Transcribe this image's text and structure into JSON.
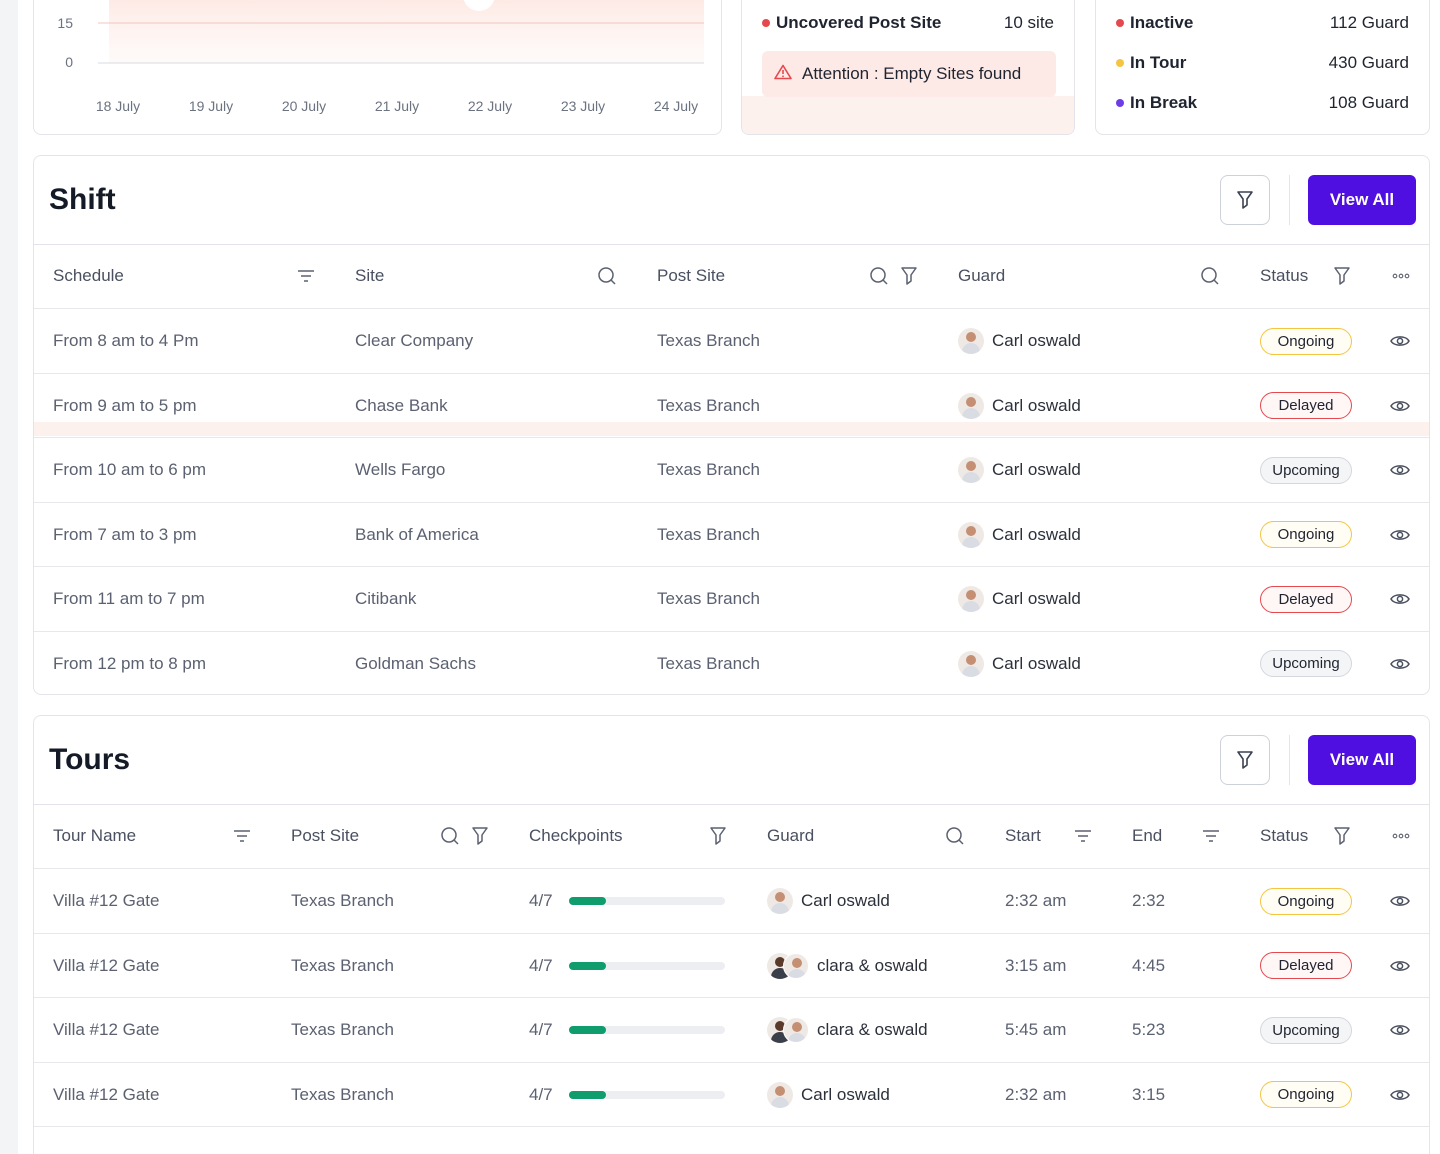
{
  "chart": {
    "y_ticks": [
      "15",
      "0"
    ],
    "x_ticks": [
      "18 July",
      "19 July",
      "20 July",
      "21 July",
      "22 July",
      "23 July",
      "24 July"
    ]
  },
  "uncovered": {
    "label": "Uncovered Post Site",
    "value": "10 site",
    "dot_color": "#e5484d",
    "attention_text": "Attention : Empty Sites found",
    "attention_icon": "warning-triangle-icon"
  },
  "guards": [
    {
      "label": "Inactive",
      "value": "112 Guard",
      "dot_color": "#e5484d"
    },
    {
      "label": "In Tour",
      "value": "430 Guard",
      "dot_color": "#f4c542"
    },
    {
      "label": "In Break",
      "value": "108 Guard",
      "dot_color": "#6d3ce8"
    }
  ],
  "shift": {
    "title": "Shift",
    "view_all": "View All",
    "headers": {
      "schedule": "Schedule",
      "site": "Site",
      "post_site": "Post Site",
      "guard": "Guard",
      "status": "Status"
    },
    "rows": [
      {
        "schedule": "From 8 am to 4 Pm",
        "site": "Clear Company",
        "post_site": "Texas Branch",
        "guard": "Carl oswald",
        "status": "Ongoing"
      },
      {
        "schedule": "From 9 am to 5 pm",
        "site": "Chase Bank",
        "post_site": "Texas Branch",
        "guard": "Carl oswald",
        "status": "Delayed"
      },
      {
        "schedule": "From 10 am to 6 pm",
        "site": "Wells Fargo",
        "post_site": "Texas Branch",
        "guard": "Carl oswald",
        "status": "Upcoming"
      },
      {
        "schedule": "From 7 am to 3 pm",
        "site": "Bank of America",
        "post_site": "Texas Branch",
        "guard": "Carl oswald",
        "status": "Ongoing"
      },
      {
        "schedule": "From 11 am to 7 pm",
        "site": "Citibank",
        "post_site": "Texas Branch",
        "guard": "Carl oswald",
        "status": "Delayed"
      },
      {
        "schedule": "From 12 pm to 8 pm",
        "site": "Goldman Sachs",
        "post_site": "Texas Branch",
        "guard": "Carl oswald",
        "status": "Upcoming"
      }
    ]
  },
  "tours": {
    "title": "Tours",
    "view_all": "View All",
    "headers": {
      "tour_name": "Tour Name",
      "post_site": "Post Site",
      "checkpoints": "Checkpoints",
      "guard": "Guard",
      "start": "Start",
      "end": "End",
      "status": "Status"
    },
    "rows": [
      {
        "tour_name": "Villa #12 Gate",
        "post_site": "Texas Branch",
        "checkpoints": "4/7",
        "progress": 0.24,
        "guard": "Carl oswald",
        "pair": false,
        "start": "2:32 am",
        "end": "2:32",
        "status": "Ongoing"
      },
      {
        "tour_name": "Villa #12 Gate",
        "post_site": "Texas Branch",
        "checkpoints": "4/7",
        "progress": 0.24,
        "guard": "clara & oswald",
        "pair": true,
        "start": "3:15 am",
        "end": "4:45",
        "status": "Delayed"
      },
      {
        "tour_name": "Villa #12 Gate",
        "post_site": "Texas Branch",
        "checkpoints": "4/7",
        "progress": 0.24,
        "guard": "clara & oswald",
        "pair": true,
        "start": "5:45 am",
        "end": "5:23",
        "status": "Upcoming"
      },
      {
        "tour_name": "Villa #12 Gate",
        "post_site": "Texas Branch",
        "checkpoints": "4/7",
        "progress": 0.24,
        "guard": "Carl oswald",
        "pair": false,
        "start": "2:32 am",
        "end": "3:15",
        "status": "Ongoing"
      }
    ]
  }
}
